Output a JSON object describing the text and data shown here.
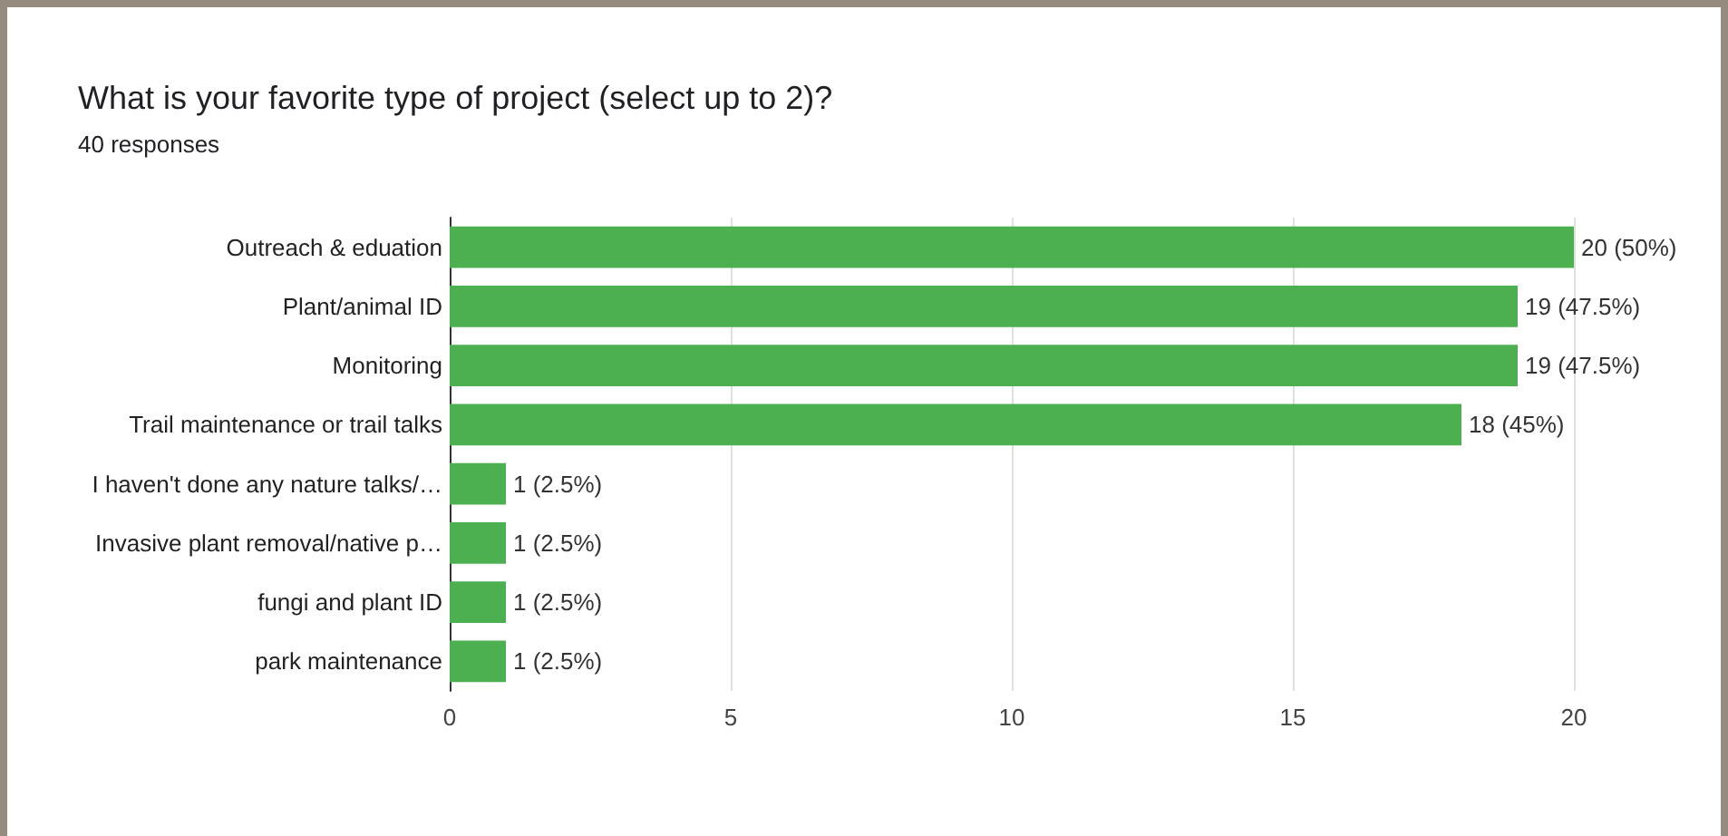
{
  "chart_data": {
    "type": "bar",
    "orientation": "horizontal",
    "title": "What is your favorite type of project (select up to 2)?",
    "subtitle": "40 responses",
    "categories": [
      "Outreach & eduation",
      "Plant/animal ID",
      "Monitoring",
      "Trail maintenance or trail talks",
      "I haven't done any nature talks/…",
      "Invasive plant removal/native p…",
      "fungi and plant ID",
      "park maintenance"
    ],
    "values": [
      20,
      19,
      19,
      18,
      1,
      1,
      1,
      1
    ],
    "value_labels": [
      "20 (50%)",
      "19 (47.5%)",
      "19 (47.5%)",
      "18 (45%)",
      "1 (2.5%)",
      "1 (2.5%)",
      "1 (2.5%)",
      "1 (2.5%)"
    ],
    "color": "#4caf50",
    "xlim": [
      0,
      20
    ],
    "xticks": [
      0,
      5,
      10,
      15,
      20
    ],
    "grid": "x"
  }
}
